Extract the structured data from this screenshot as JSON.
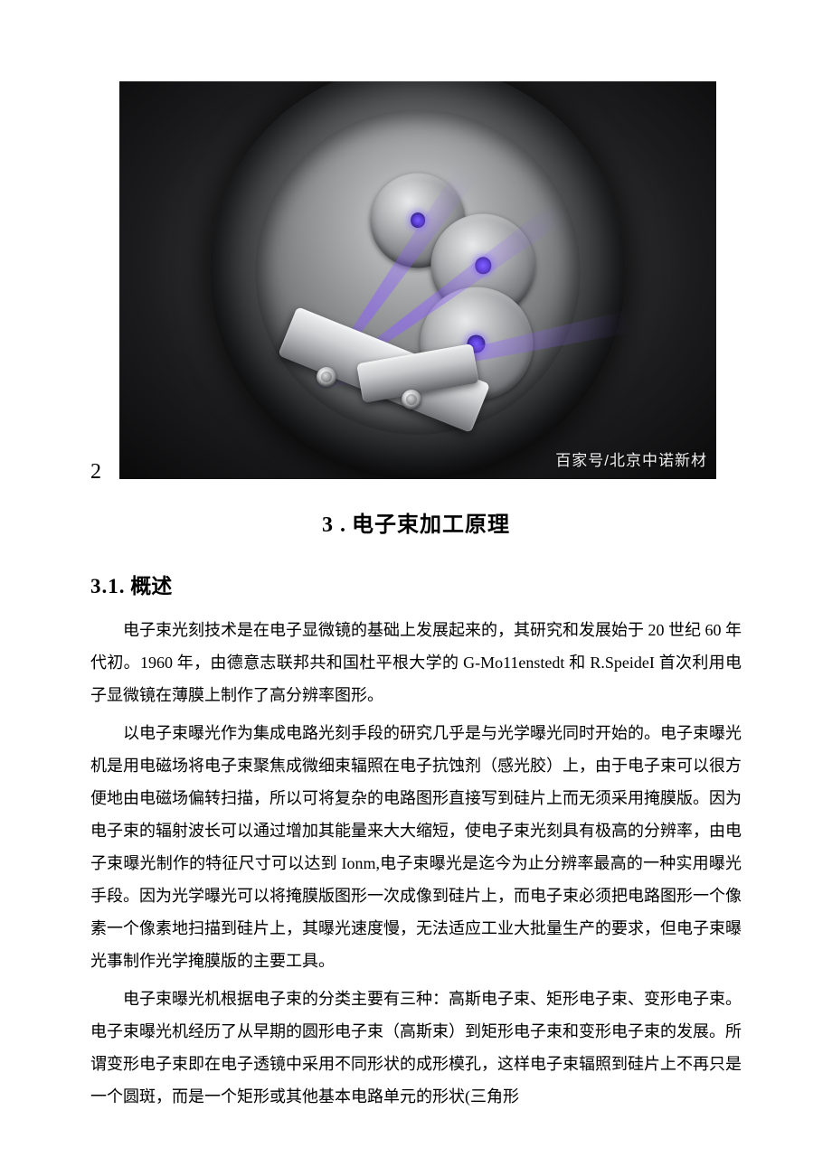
{
  "figure": {
    "number": "2",
    "watermark": "百家号/北京中诺新材",
    "bg_colors": [
      "#5a5a5c",
      "#3a3a3c",
      "#1c1c1e",
      "#0a0a0b"
    ],
    "beam_color": "#8a5eff"
  },
  "section": {
    "number": "3 .",
    "title": "电子束加工原理"
  },
  "subsection": {
    "number": "3.1.",
    "title": "概述"
  },
  "paragraphs": {
    "p1a": "电子束光刻技术是在电子显微镜的基础上发展起来的，其研究和发展始于 20 世纪 60 年代初。1960 年，由德意志联邦共和国杜平根大学的 ",
    "p1b": "G-Mo11enstedt",
    "p1c": " 和 ",
    "p1d": "R.SpeideI",
    "p1e": " 首次利用电子显微镜在薄膜上制作了高分辨率图形。",
    "p2a": "以电子束曝光作为集成电路光刻手段的研究几乎是与光学曝光同时开始的。电子束曝光机是用电磁场将电子束聚焦成微细束辐照在电子抗蚀剂（感光胶）上，由于电子束可以很方便地由电磁场偏转扫描，所以可将复杂的电路图形直接写到硅片上而无须采用掩膜版。因为电子束的辐射波长可以通过增加其能量来大大缩短，使电子束光刻具有极高的分辨率，由电子束曝光制作的特征尺寸可以达到 ",
    "p2b": "Ionm",
    "p2c": ",电子束曝光是迄今为止分辨率最高的一种实用曝光手段。因为光学曝光可以将掩膜版图形一次成像到硅片上，而电子束必须把电路图形一个像素一个像素地扫描到硅片上，其曝光速度慢，无法适应工业大批量生产的要求，但电子束曝光事制作光学掩膜版的主要工具。",
    "p3": "电子束曝光机根据电子束的分类主要有三种：高斯电子束、矩形电子束、变形电子束。电子束曝光机经历了从早期的圆形电子束（高斯束）到矩形电子束和变形电子束的发展。所谓变形电子束即在电子透镜中采用不同形状的成形模孔，这样电子束辐照到硅片上不再只是一个圆斑，而是一个矩形或其他基本电路单元的形状(三角形"
  },
  "typography": {
    "body_font": "Songti SC / SimSun serif",
    "latin_font": "Times New Roman",
    "body_fontsize_pt": 13,
    "heading_fontsize_pt": 18,
    "line_height": 2.0,
    "text_color": "#000000",
    "background_color": "#ffffff",
    "indent_em": 2
  }
}
